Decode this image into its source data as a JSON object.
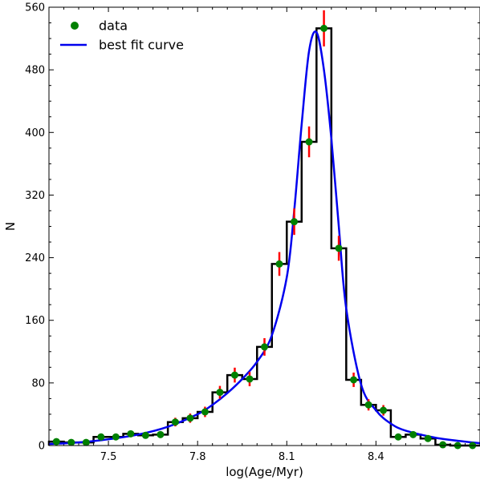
{
  "chart_data": {
    "type": "histogram",
    "xlabel": "log(Age/Myr)",
    "ylabel": "N",
    "xlim": [
      7.3,
      8.75
    ],
    "ylim": [
      0,
      560
    ],
    "xticks": [
      7.5,
      7.8,
      8.1,
      8.4
    ],
    "xtick_labels": [
      "7.5",
      "7.8",
      "8.1",
      "8.4"
    ],
    "yticks": [
      0,
      80,
      160,
      240,
      320,
      400,
      480,
      560
    ],
    "ytick_labels": [
      "0",
      "80",
      "160",
      "240",
      "320",
      "400",
      "480",
      "560"
    ],
    "bin_width": 0.05,
    "bin_edges": [
      7.3,
      7.35,
      7.4,
      7.45,
      7.5,
      7.55,
      7.6,
      7.65,
      7.7,
      7.75,
      7.8,
      7.85,
      7.9,
      7.95,
      8.0,
      8.05,
      8.1,
      8.15,
      8.2,
      8.25,
      8.3,
      8.35,
      8.4,
      8.45,
      8.5,
      8.55,
      8.6,
      8.65,
      8.7,
      8.75
    ],
    "series": [
      {
        "name": "data",
        "marker": "circle",
        "color": "#008000",
        "error_color": "#ff0000",
        "x": [
          7.325,
          7.375,
          7.425,
          7.475,
          7.525,
          7.575,
          7.625,
          7.675,
          7.725,
          7.775,
          7.825,
          7.875,
          7.925,
          7.975,
          8.025,
          8.075,
          8.125,
          8.175,
          8.225,
          8.275,
          8.325,
          8.375,
          8.425,
          8.475,
          8.525,
          8.575,
          8.625,
          8.675,
          8.725
        ],
        "y": [
          5,
          4,
          4,
          11,
          11,
          15,
          13,
          14,
          30,
          35,
          43,
          68,
          90,
          85,
          126,
          232,
          286,
          388,
          533,
          252,
          84,
          52,
          45,
          11,
          14,
          9,
          1,
          0,
          0
        ],
        "yerr": [
          2.2,
          2,
          2,
          3.3,
          3.3,
          3.9,
          3.6,
          3.7,
          5.5,
          5.9,
          6.6,
          8.2,
          9.5,
          9.2,
          11.2,
          15.2,
          16.9,
          19.7,
          23.1,
          15.9,
          9.2,
          7.2,
          6.7,
          3.3,
          3.7,
          3,
          1,
          0,
          0
        ]
      },
      {
        "name": "best fit curve",
        "type": "line",
        "color": "#0000ee",
        "x": [
          7.3,
          7.4,
          7.5,
          7.6,
          7.7,
          7.8,
          7.85,
          7.9,
          7.95,
          8.0,
          8.05,
          8.1,
          8.125,
          8.15,
          8.175,
          8.2,
          8.225,
          8.25,
          8.275,
          8.3,
          8.35,
          8.4,
          8.45,
          8.5,
          8.6,
          8.7,
          8.75
        ],
        "y": [
          2,
          4,
          8,
          14,
          24,
          40,
          52,
          67,
          85,
          107,
          141,
          215,
          300,
          410,
          504,
          528,
          480,
          392,
          280,
          175,
          78,
          45,
          28,
          19,
          10,
          5,
          3
        ]
      }
    ],
    "legend": {
      "position": "upper-left",
      "entries": [
        "data",
        "best fit curve"
      ]
    },
    "grid": false
  }
}
